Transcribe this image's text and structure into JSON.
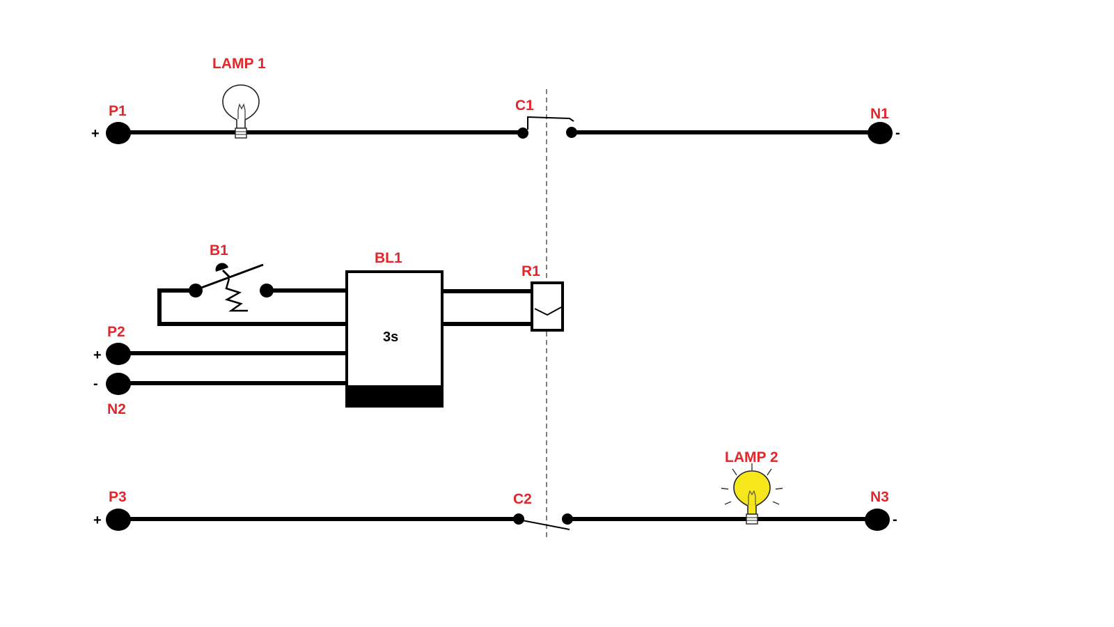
{
  "colors": {
    "label": "#e3262a",
    "wire": "#000000",
    "lamp_on": "#f6e71c",
    "lamp_off": "#ffffff"
  },
  "labels": {
    "lamp1": "LAMP 1",
    "lamp2": "LAMP 2",
    "p1": "P1",
    "n1": "N1",
    "c1": "C1",
    "c2": "C2",
    "b1": "B1",
    "bl1": "BL1",
    "r1": "R1",
    "p2": "P2",
    "n2": "N2",
    "p3": "P3",
    "n3": "N3"
  },
  "signs": {
    "p1": "+",
    "n1": "-",
    "p2": "+",
    "n2": "-",
    "p3": "+",
    "n3": "-"
  },
  "timer": {
    "delay": "3s"
  },
  "components": {
    "lamp1": {
      "state": "off",
      "icon": "light-bulb-icon"
    },
    "lamp2": {
      "state": "on",
      "icon": "light-bulb-icon"
    },
    "c1": {
      "type": "normally-open-contact",
      "state": "open"
    },
    "c2": {
      "type": "normally-closed-contact",
      "state": "open"
    },
    "b1": {
      "type": "push-button"
    },
    "r1": {
      "type": "relay-coil"
    }
  }
}
